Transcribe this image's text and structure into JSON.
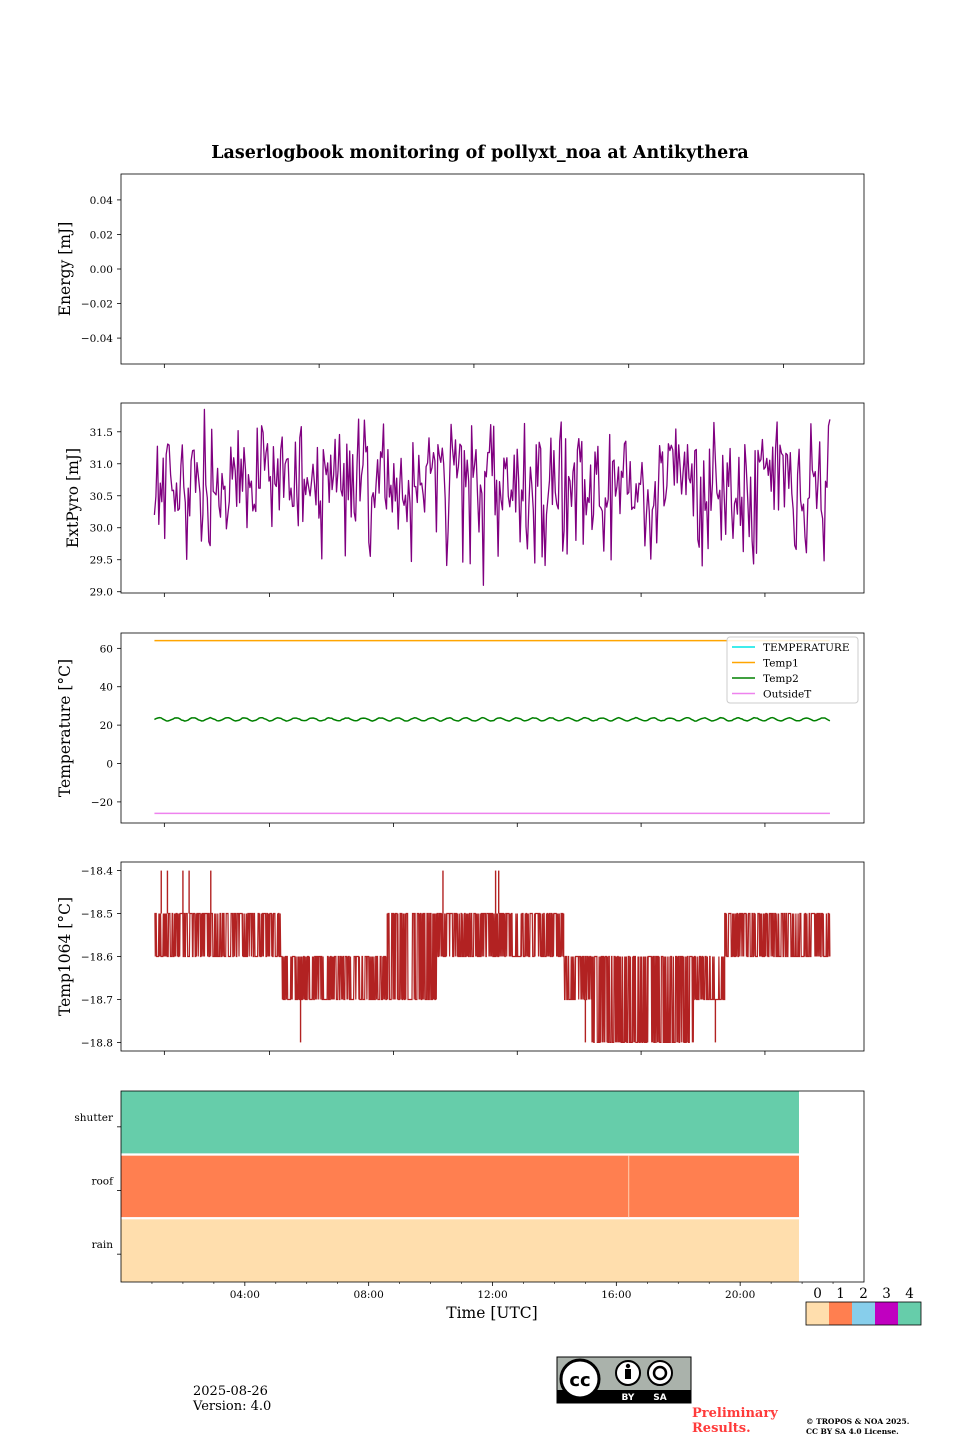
{
  "chart_data": {
    "title": "Laserlogbook monitoring of pollyxt_noa at Antikythera",
    "xlabel": "Time [UTC]",
    "x_unit": "hours",
    "x_range": [
      0,
      24
    ],
    "x_ticks": [
      "04:00",
      "08:00",
      "12:00",
      "16:00",
      "20:00"
    ],
    "x_tick_hours": [
      4,
      8,
      12,
      16,
      20
    ],
    "data_span_hours": [
      1.08,
      22.9
    ],
    "panels": [
      {
        "type": "line",
        "ylabel": "Energy [mJ]",
        "ylim": [
          -0.055,
          0.055
        ],
        "yticks": [
          0.04,
          0.02,
          0.0,
          -0.02,
          -0.04
        ],
        "ytick_labels": [
          "0.04",
          "0.02",
          "0.00",
          "−0.02",
          "−0.04"
        ],
        "series": []
      },
      {
        "type": "line",
        "ylabel": "ExtPyro [mJ]",
        "ylim": [
          28.98,
          31.95
        ],
        "yticks": [
          29.0,
          29.5,
          30.0,
          30.5,
          31.0,
          31.5
        ],
        "ytick_labels": [
          "29.0",
          "29.5",
          "30.0",
          "30.5",
          "31.0",
          "31.5"
        ],
        "series": [
          {
            "name": "ExtPyro",
            "color": "#800080",
            "baseline_low": 30.2,
            "baseline_high": 31.3,
            "min": 29.1,
            "max": 31.85,
            "min_at_hour": 11.7,
            "max_at_hour": 2.7
          }
        ]
      },
      {
        "type": "line",
        "ylabel": "Temperature [°C]",
        "ylim": [
          -31,
          68
        ],
        "yticks": [
          -20,
          0,
          20,
          40,
          60
        ],
        "ytick_labels": [
          "−20",
          "0",
          "20",
          "40",
          "60"
        ],
        "legend_location": "upper right",
        "series": [
          {
            "name": "TEMPERATURE",
            "color": "#00e5e5",
            "values": []
          },
          {
            "name": "Temp1",
            "color": "#ffa500",
            "constant": 64
          },
          {
            "name": "Temp2",
            "color": "#008000",
            "mean": 23,
            "amplitude": 0.8
          },
          {
            "name": "OutsideT",
            "color": "#ee82ee",
            "constant": -26
          }
        ]
      },
      {
        "type": "line",
        "ylabel": "Temp1064 [°C]",
        "ylim": [
          -18.82,
          -18.38
        ],
        "yticks": [
          -18.4,
          -18.5,
          -18.6,
          -18.7,
          -18.8
        ],
        "ytick_labels": [
          "−18.4",
          "−18.5",
          "−18.6",
          "−18.7",
          "−18.8"
        ],
        "series": [
          {
            "name": "Temp1064",
            "color": "#b22222",
            "segments": [
              {
                "start": 1.08,
                "end": 5.2,
                "low": -18.6,
                "high": -18.5
              },
              {
                "start": 5.2,
                "end": 8.6,
                "low": -18.7,
                "high": -18.6
              },
              {
                "start": 8.6,
                "end": 10.2,
                "low": -18.7,
                "high": -18.5
              },
              {
                "start": 10.2,
                "end": 14.3,
                "low": -18.6,
                "high": -18.5
              },
              {
                "start": 14.3,
                "end": 15.2,
                "low": -18.7,
                "high": -18.6
              },
              {
                "start": 15.2,
                "end": 18.5,
                "low": -18.8,
                "high": -18.6
              },
              {
                "start": 18.5,
                "end": 19.5,
                "low": -18.7,
                "high": -18.6
              },
              {
                "start": 19.5,
                "end": 22.9,
                "low": -18.6,
                "high": -18.5
              }
            ],
            "spikes": [
              {
                "hour": 1.3,
                "value": -18.4
              },
              {
                "hour": 1.5,
                "value": -18.4
              },
              {
                "hour": 2.0,
                "value": -18.4
              },
              {
                "hour": 2.2,
                "value": -18.4
              },
              {
                "hour": 2.9,
                "value": -18.4
              },
              {
                "hour": 10.4,
                "value": -18.4
              },
              {
                "hour": 12.1,
                "value": -18.4
              },
              {
                "hour": 12.2,
                "value": -18.4
              },
              {
                "hour": 5.8,
                "value": -18.8
              },
              {
                "hour": 15.0,
                "value": -18.8
              },
              {
                "hour": 19.2,
                "value": -18.8
              }
            ]
          }
        ]
      },
      {
        "type": "status_bars",
        "rows": [
          "shutter",
          "roof",
          "rain"
        ],
        "end_hour": 21.9,
        "row_values": {
          "shutter": 4,
          "roof": 1,
          "rain": 0
        },
        "roof_split_hour": 16.4
      }
    ],
    "colorbar": {
      "labels": [
        "0",
        "1",
        "2",
        "3",
        "4"
      ],
      "colors": [
        "#ffdead",
        "#ff7f50",
        "#87ceeb",
        "#c000c0",
        "#66cdaa"
      ]
    }
  },
  "footer": {
    "date": "2025-08-26",
    "version": "Version: 4.0",
    "preliminary_line1": "Preliminary",
    "preliminary_line2": "Results.",
    "copyright_line1": "© TROPOS & NOA 2025.",
    "copyright_line2": "CC BY SA 4.0 License.",
    "license_badge": "cc-by-sa-icon",
    "license_by": "BY",
    "license_sa": "SA"
  }
}
